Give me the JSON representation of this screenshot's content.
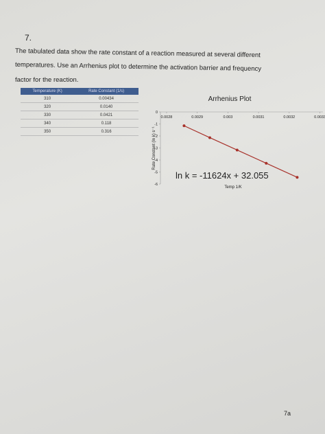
{
  "question_number": "7.",
  "prompt_lines": [
    "The tabulated data show the rate constant of a reaction measured at several different",
    "temperatures. Use an Arrhenius plot to determine the activation barrier and frequency",
    "factor for the reaction."
  ],
  "table": {
    "headers": [
      "Temperature (K)",
      "Rate Constant (1/s)"
    ],
    "rows": [
      [
        "310",
        "0.00434"
      ],
      [
        "320",
        "0.0140"
      ],
      [
        "330",
        "0.0421"
      ],
      [
        "340",
        "0.118"
      ],
      [
        "350",
        "0.316"
      ]
    ]
  },
  "chart": {
    "type": "line",
    "title": "Arrhenius Plot",
    "x_label": "Temp 1/K",
    "y_label": "Rate Constant (ln k) s⁻¹",
    "annotation": "ln k = -11624x + 32.055",
    "x": [
      0.003226,
      0.003125,
      0.00303,
      0.002941,
      0.002857
    ],
    "values": [
      -5.44,
      -4.27,
      -3.17,
      -2.14,
      -1.15
    ],
    "color": "#a8322b",
    "xlim": [
      0.00278,
      0.00331
    ],
    "xticks": [
      0.0028,
      0.0029,
      0.003,
      0.0031,
      0.0032,
      0.0033
    ],
    "ylim": [
      -6,
      0
    ],
    "yticks": [
      0,
      -1,
      -2,
      -3,
      -4,
      -5,
      -6
    ]
  },
  "page_number": "7a"
}
